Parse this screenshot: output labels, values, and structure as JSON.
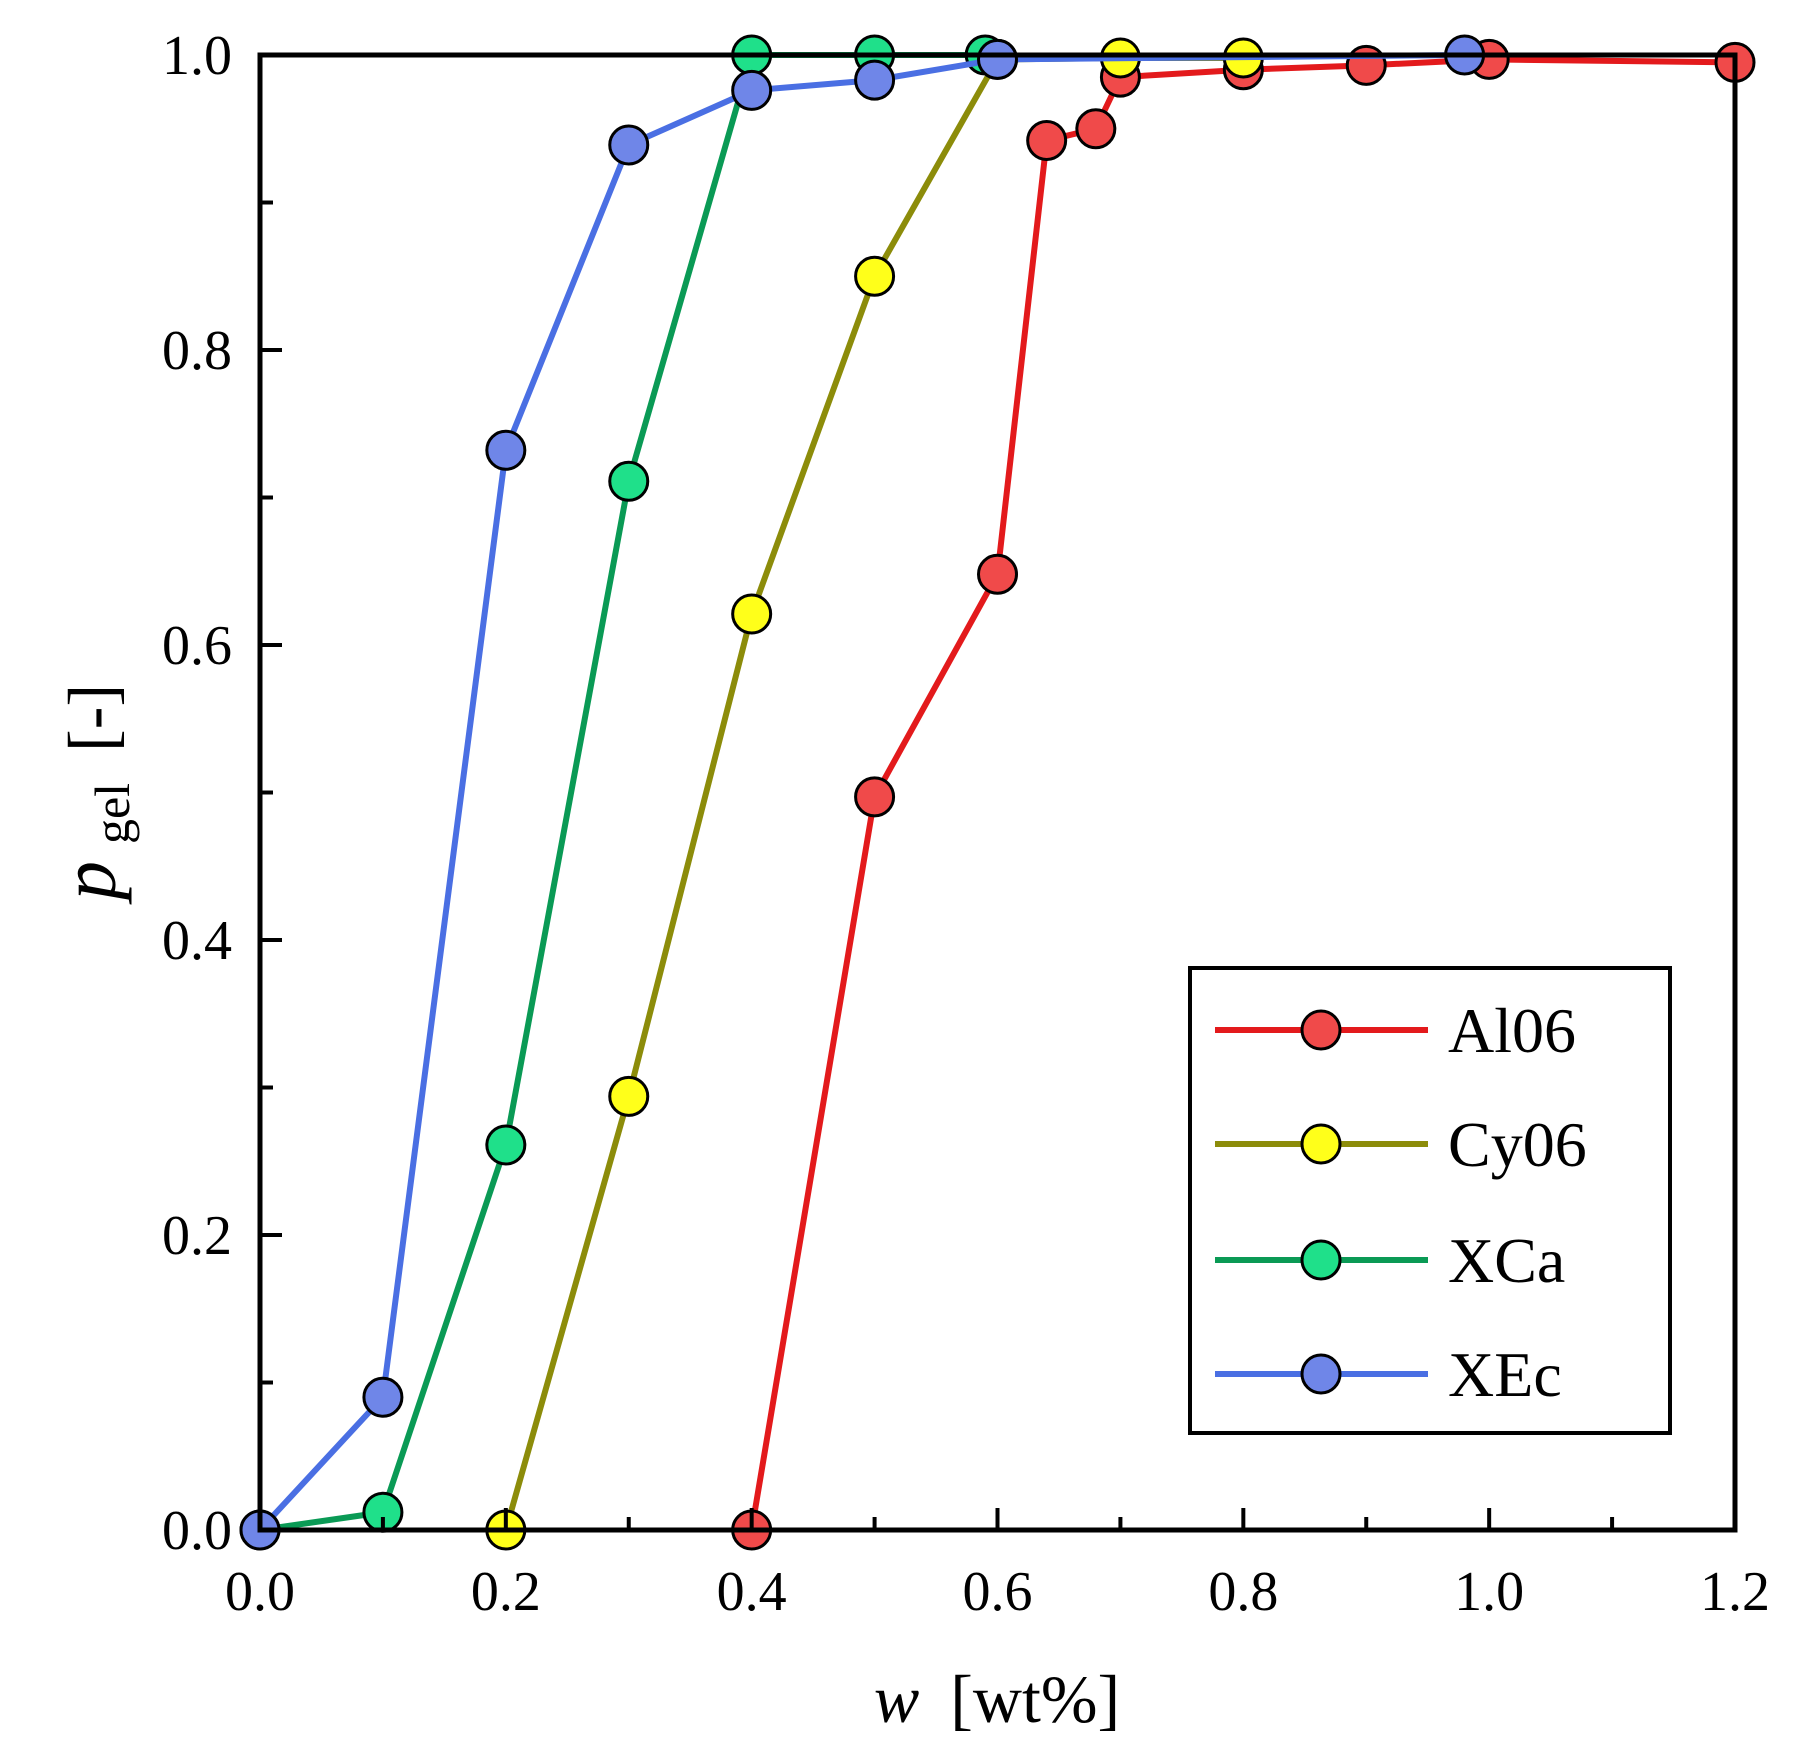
{
  "chart_data": {
    "type": "line",
    "title": "",
    "xlabel": {
      "var": "w",
      "unit": "[wt%]"
    },
    "ylabel": {
      "var": "p",
      "sub": "gel",
      "unit": "[-]"
    },
    "xlim": [
      0,
      1.2
    ],
    "ylim": [
      0,
      1.0
    ],
    "x_ticks": [
      "0.0",
      "0.2",
      "0.4",
      "0.6",
      "0.8",
      "1.0",
      "1.2"
    ],
    "y_ticks": [
      "0.0",
      "0.2",
      "0.4",
      "0.6",
      "0.8",
      "1.0"
    ],
    "x_tick_values": [
      0,
      0.2,
      0.4,
      0.6,
      0.8,
      1.0,
      1.2
    ],
    "y_tick_values": [
      0,
      0.2,
      0.4,
      0.6,
      0.8,
      1.0
    ],
    "grid": false,
    "legend_position": "bottom-right",
    "series": [
      {
        "name": "Al06",
        "line_color": "#e31a1c",
        "marker_color": "#f04a4a",
        "x": [
          0.4,
          0.5,
          0.6,
          0.64,
          0.68,
          0.7,
          0.8,
          0.9,
          1.0,
          1.2
        ],
        "y": [
          0.0,
          0.497,
          0.648,
          0.942,
          0.95,
          0.985,
          0.99,
          0.993,
          0.997,
          0.995
        ]
      },
      {
        "name": "Cy06",
        "line_color": "#8c8c0a",
        "marker_color": "#ffff1a",
        "x": [
          0.2,
          0.3,
          0.4,
          0.5,
          0.6,
          0.7,
          0.8
        ],
        "y": [
          0.0,
          0.294,
          0.621,
          0.85,
          0.997,
          0.998,
          0.998
        ]
      },
      {
        "name": "XCa",
        "line_color": "#0a9a55",
        "marker_color": "#1fe08a",
        "x": [
          0.0,
          0.1,
          0.2,
          0.3,
          0.4,
          0.5,
          0.59
        ],
        "y": [
          0.0,
          0.012,
          0.261,
          0.711,
          1.0,
          1.0,
          1.0
        ]
      },
      {
        "name": "XEc",
        "line_color": "#4a6fe3",
        "marker_color": "#6f86e8",
        "x": [
          0.0,
          0.1,
          0.2,
          0.3,
          0.4,
          0.5,
          0.6,
          0.98
        ],
        "y": [
          0.0,
          0.09,
          0.732,
          0.939,
          0.976,
          0.983,
          0.997,
          1.0
        ]
      }
    ]
  }
}
